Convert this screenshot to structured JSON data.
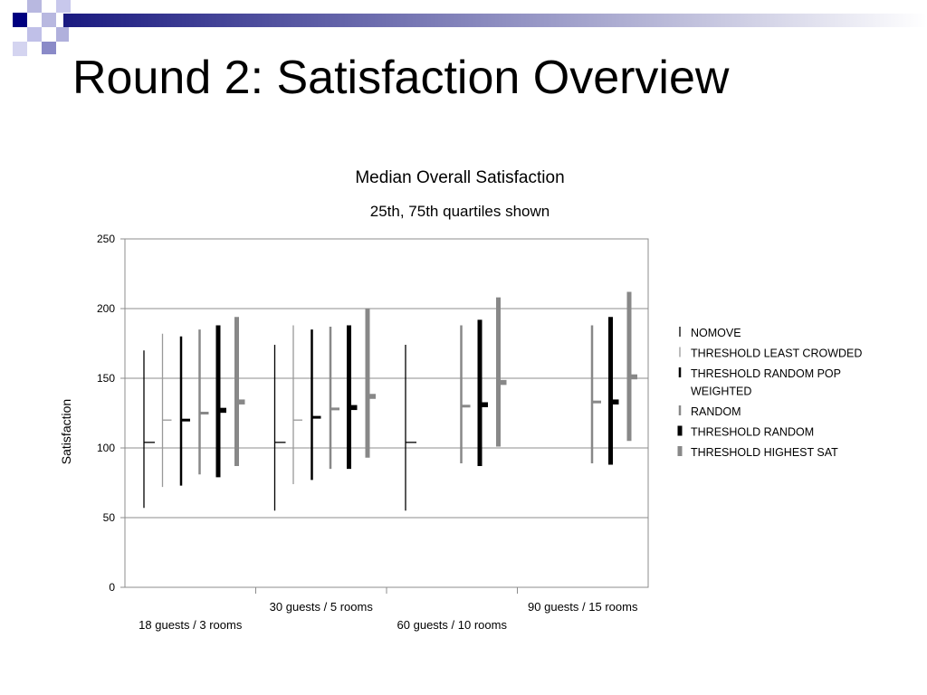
{
  "slide": {
    "title": "Round 2: Satisfaction Overview"
  },
  "chart_data": {
    "type": "bar",
    "title": "Median Overall Satisfaction",
    "subtitle": "25th, 75th quartiles shown",
    "xlabel": "",
    "ylabel": "Satisfaction",
    "ylim": [
      0,
      250
    ],
    "yticks": [
      0,
      50,
      100,
      150,
      200,
      250
    ],
    "grid": true,
    "legend_position": "right",
    "categories": [
      "18 guests / 3 rooms",
      "30 guests / 5 rooms",
      "60 guests / 10 rooms",
      "90 guests / 15 rooms"
    ],
    "series": [
      {
        "name": "NOMOVE",
        "color": "#000000",
        "medians": [
          104,
          104,
          104,
          null
        ],
        "q25": [
          57,
          55,
          55,
          null
        ],
        "q75": [
          170,
          174,
          174,
          null
        ]
      },
      {
        "name": "THRESHOLD LEAST CROWDED",
        "color": "#999999",
        "medians": [
          120,
          120,
          null,
          null
        ],
        "q25": [
          72,
          74,
          null,
          null
        ],
        "q75": [
          182,
          188,
          null,
          null
        ]
      },
      {
        "name": "THRESHOLD RANDOM POP WEIGHTED",
        "color": "#000000",
        "medians": [
          120,
          122,
          null,
          null
        ],
        "q25": [
          73,
          77,
          null,
          null
        ],
        "q75": [
          180,
          185,
          null,
          null
        ]
      },
      {
        "name": "RANDOM",
        "color": "#888888",
        "medians": [
          125,
          128,
          130,
          133
        ],
        "q25": [
          81,
          85,
          89,
          89
        ],
        "q75": [
          185,
          187,
          188,
          188
        ]
      },
      {
        "name": "THRESHOLD RANDOM",
        "color": "#000000",
        "medians": [
          127,
          129,
          131,
          133
        ],
        "q25": [
          79,
          85,
          87,
          88
        ],
        "q75": [
          188,
          188,
          192,
          194
        ]
      },
      {
        "name": "THRESHOLD HIGHEST SAT",
        "color": "#888888",
        "medians": [
          133,
          137,
          147,
          151
        ],
        "q25": [
          87,
          93,
          101,
          105
        ],
        "q75": [
          194,
          200,
          208,
          212
        ]
      }
    ]
  }
}
